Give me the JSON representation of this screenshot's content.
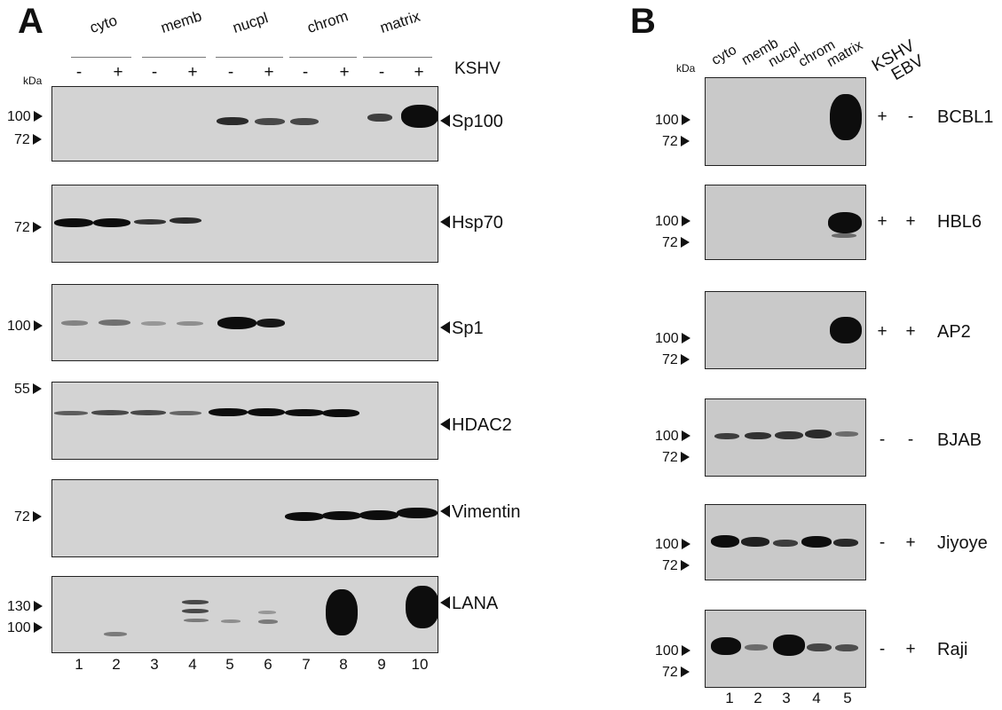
{
  "panel_a": {
    "letter": "A",
    "fractions": [
      "cyto",
      "memb",
      "nucpl",
      "chrom",
      "matrix"
    ],
    "kshv_label": "KSHV",
    "signs": [
      "-",
      "+",
      "-",
      "+",
      "-",
      "+",
      "-",
      "+",
      "-",
      "+"
    ],
    "kda_label": "kDa",
    "lanes": [
      "1",
      "2",
      "3",
      "4",
      "5",
      "6",
      "7",
      "8",
      "9",
      "10"
    ],
    "blots": [
      {
        "label": "Sp100",
        "markers": [
          "100",
          "72"
        ]
      },
      {
        "label": "Hsp70",
        "markers": [
          "72"
        ]
      },
      {
        "label": "Sp1",
        "markers": [
          "100"
        ]
      },
      {
        "label": "HDAC2",
        "markers": [
          "55"
        ]
      },
      {
        "label": "Vimentin",
        "markers": [
          "72"
        ]
      },
      {
        "label": "LANA",
        "markers": [
          "130",
          "100"
        ]
      }
    ]
  },
  "panel_b": {
    "letter": "B",
    "kda_label": "kDa",
    "fractions": [
      "cyto",
      "memb",
      "nucpl",
      "chrom",
      "matrix"
    ],
    "virus_labels": [
      "KSHV",
      "EBV"
    ],
    "lanes": [
      "1",
      "2",
      "3",
      "4",
      "5"
    ],
    "blots": [
      {
        "cell_line": "BCBL1",
        "kshv": "+",
        "ebv": "-",
        "markers": [
          "100",
          "72"
        ]
      },
      {
        "cell_line": "HBL6",
        "kshv": "+",
        "ebv": "+",
        "markers": [
          "100",
          "72"
        ]
      },
      {
        "cell_line": "AP2",
        "kshv": "+",
        "ebv": "+",
        "markers": [
          "100",
          "72"
        ]
      },
      {
        "cell_line": "BJAB",
        "kshv": "-",
        "ebv": "-",
        "markers": [
          "100",
          "72"
        ]
      },
      {
        "cell_line": "Jiyoye",
        "kshv": "-",
        "ebv": "+",
        "markers": [
          "100",
          "72"
        ]
      },
      {
        "cell_line": "Raji",
        "kshv": "-",
        "ebv": "+",
        "markers": [
          "100",
          "72"
        ]
      }
    ]
  }
}
